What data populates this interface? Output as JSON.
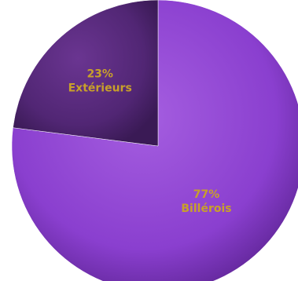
{
  "chart_data": {
    "type": "pie",
    "slices": [
      {
        "pct_label": "77%",
        "label": "Billérois",
        "value": 77,
        "color": "#8a3fcf",
        "color_light": "#a55ee0",
        "color_dark": "#5f2596"
      },
      {
        "pct_label": "23%",
        "label": "Extérieurs",
        "value": 23,
        "color": "#512674",
        "color_light": "#6a3591",
        "color_dark": "#3a1a55"
      }
    ],
    "start": "12 o'clock",
    "direction": "clockwise",
    "label_color": "#c8a02a",
    "legend": "none"
  }
}
